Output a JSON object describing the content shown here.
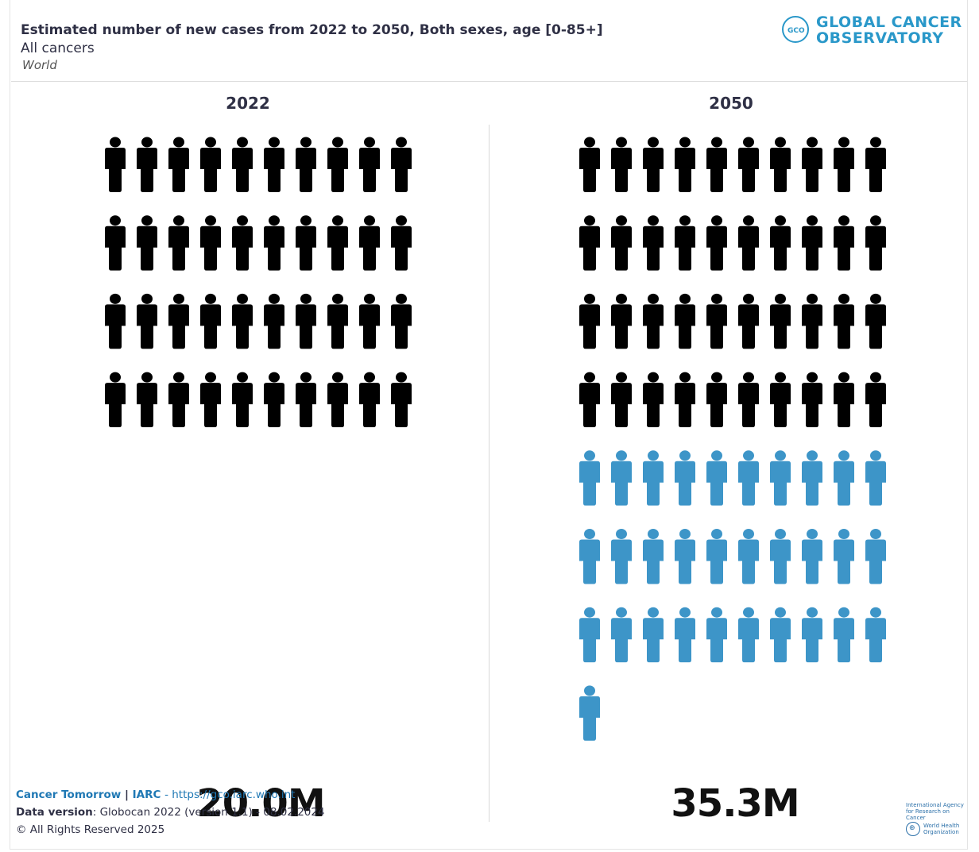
{
  "header": {
    "title": "Estimated number of new cases from 2022 to 2050, Both sexes, age [0-85+]",
    "subtitle": "All cancers",
    "region": "World"
  },
  "logo": {
    "line1": "GLOBAL CANCER",
    "line2": "OBSERVATORY",
    "badge": "GCO"
  },
  "chart_data": {
    "type": "pictograph",
    "title": "Estimated number of new cases from 2022 to 2050, Both sexes, age [0-85+]",
    "subtitle": "All cancers",
    "region": "World",
    "categories": [
      "2022",
      "2050"
    ],
    "values": [
      20.0,
      35.3
    ],
    "value_labels": [
      "20.0M",
      "35.3M"
    ],
    "icon_unit": 0.5,
    "icon_counts": [
      {
        "year": "2022",
        "baseline": 40,
        "increase": 0
      },
      {
        "year": "2050",
        "baseline": 40,
        "increase": 31
      }
    ],
    "colors": {
      "baseline": "#000000",
      "increase": "#3d95c8"
    }
  },
  "footer": {
    "source_name": "Cancer Tomorrow",
    "separator": "|",
    "org": "IARC",
    "link": "- https://gco.iarc.who.int",
    "data_version_label": "Data version",
    "data_version_value": ": Globocan 2022 (version 1.1) - 08.02.2024",
    "copyright": "© All Rights Reserved 2025"
  },
  "partners": {
    "iarc_line1": "International Agency",
    "iarc_line2": "for Research on Cancer",
    "who_line1": "World Health",
    "who_line2": "Organization"
  }
}
